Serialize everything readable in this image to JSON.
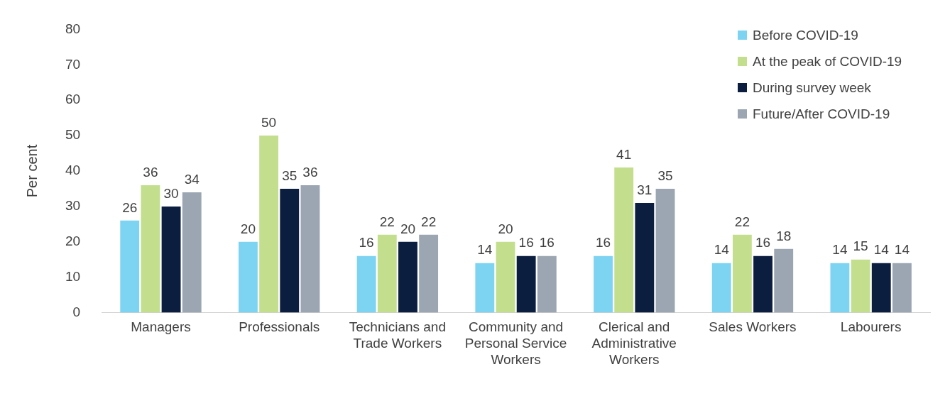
{
  "chart_data": {
    "type": "bar",
    "ylabel": "Per cent",
    "categories": [
      "Managers",
      "Professionals",
      "Technicians and Trade Workers",
      "Community and Personal Service Workers",
      "Clerical and Administrative Workers",
      "Sales Workers",
      "Labourers"
    ],
    "series": [
      {
        "name": "Before COVID-19",
        "color": "#7dd3f2",
        "values": [
          26,
          20,
          16,
          14,
          16,
          14,
          14
        ]
      },
      {
        "name": "At the peak of COVID-19",
        "color": "#c3df8e",
        "values": [
          36,
          50,
          22,
          20,
          41,
          22,
          15
        ]
      },
      {
        "name": "During survey week",
        "color": "#0c1e3f",
        "values": [
          30,
          35,
          20,
          16,
          31,
          16,
          14
        ]
      },
      {
        "name": "Future/After COVID-19",
        "color": "#9ba6b2",
        "values": [
          34,
          36,
          22,
          16,
          35,
          18,
          14
        ]
      }
    ],
    "ylim": [
      0,
      80
    ],
    "yticks": [
      0,
      10,
      20,
      30,
      40,
      50,
      60,
      70,
      80
    ],
    "grid": false,
    "legend": "top right",
    "data_labels": true
  }
}
